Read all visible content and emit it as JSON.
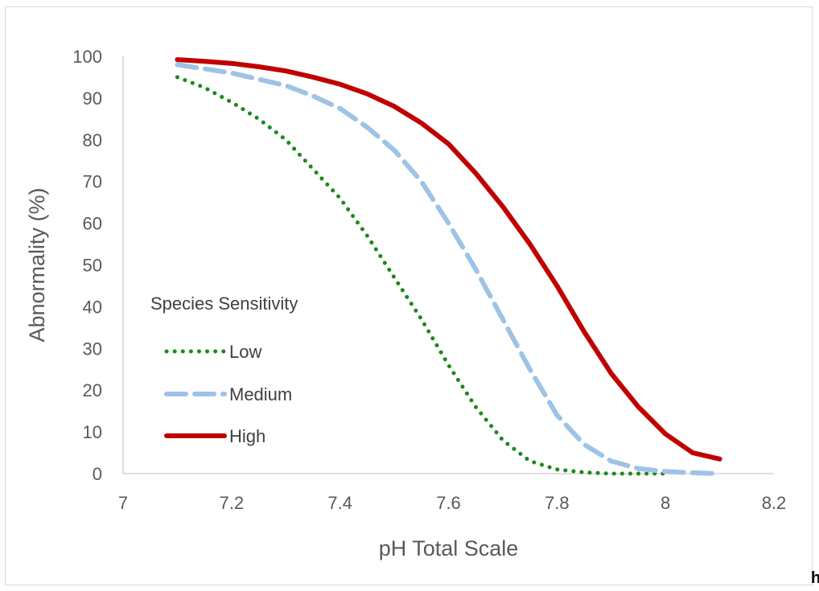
{
  "chart_data": {
    "type": "line",
    "xlabel": "pH Total Scale",
    "ylabel": "Abnormality (%)",
    "xlim": [
      7,
      8.2
    ],
    "ylim": [
      0,
      100
    ],
    "x_ticks": [
      "7",
      "7.2",
      "7.4",
      "7.6",
      "7.8",
      "8",
      "8.2"
    ],
    "y_ticks": [
      "0",
      "10",
      "20",
      "30",
      "40",
      "50",
      "60",
      "70",
      "80",
      "90",
      "100"
    ],
    "grid": false,
    "legend": {
      "title": "Species Sensitivity",
      "placement": "lower-left"
    },
    "series": [
      {
        "name": "Low",
        "color": "#1a8a1a",
        "style": "dotted",
        "x": [
          7.1,
          7.15,
          7.2,
          7.25,
          7.3,
          7.35,
          7.4,
          7.45,
          7.5,
          7.55,
          7.6,
          7.65,
          7.7,
          7.75,
          7.8,
          7.85,
          7.9,
          7.95,
          8.0
        ],
        "y": [
          95,
          92.5,
          89,
          85,
          80,
          73,
          66,
          57,
          47,
          37,
          26,
          16,
          8,
          3,
          1,
          0.3,
          0,
          0,
          0
        ]
      },
      {
        "name": "Medium",
        "color": "#9dc3e6",
        "style": "dashed",
        "x": [
          7.1,
          7.15,
          7.2,
          7.25,
          7.3,
          7.35,
          7.4,
          7.45,
          7.5,
          7.55,
          7.6,
          7.65,
          7.7,
          7.75,
          7.8,
          7.85,
          7.9,
          7.95,
          8.0,
          8.05,
          8.1
        ],
        "y": [
          98,
          97,
          96,
          94.5,
          93,
          90.5,
          87.5,
          83,
          77.5,
          70,
          60,
          49,
          37,
          25,
          14,
          7,
          3,
          1.2,
          0.5,
          0.2,
          0
        ]
      },
      {
        "name": "High",
        "color": "#c00000",
        "style": "solid",
        "x": [
          7.1,
          7.15,
          7.2,
          7.25,
          7.3,
          7.35,
          7.4,
          7.45,
          7.5,
          7.55,
          7.6,
          7.65,
          7.7,
          7.75,
          7.8,
          7.85,
          7.9,
          7.95,
          8.0,
          8.05,
          8.1
        ],
        "y": [
          99.2,
          98.8,
          98.3,
          97.5,
          96.5,
          95,
          93.3,
          91,
          88,
          84,
          79,
          72,
          64,
          55,
          45,
          34,
          24,
          16,
          9.5,
          5,
          3.5
        ]
      }
    ]
  },
  "corner_text": "h"
}
